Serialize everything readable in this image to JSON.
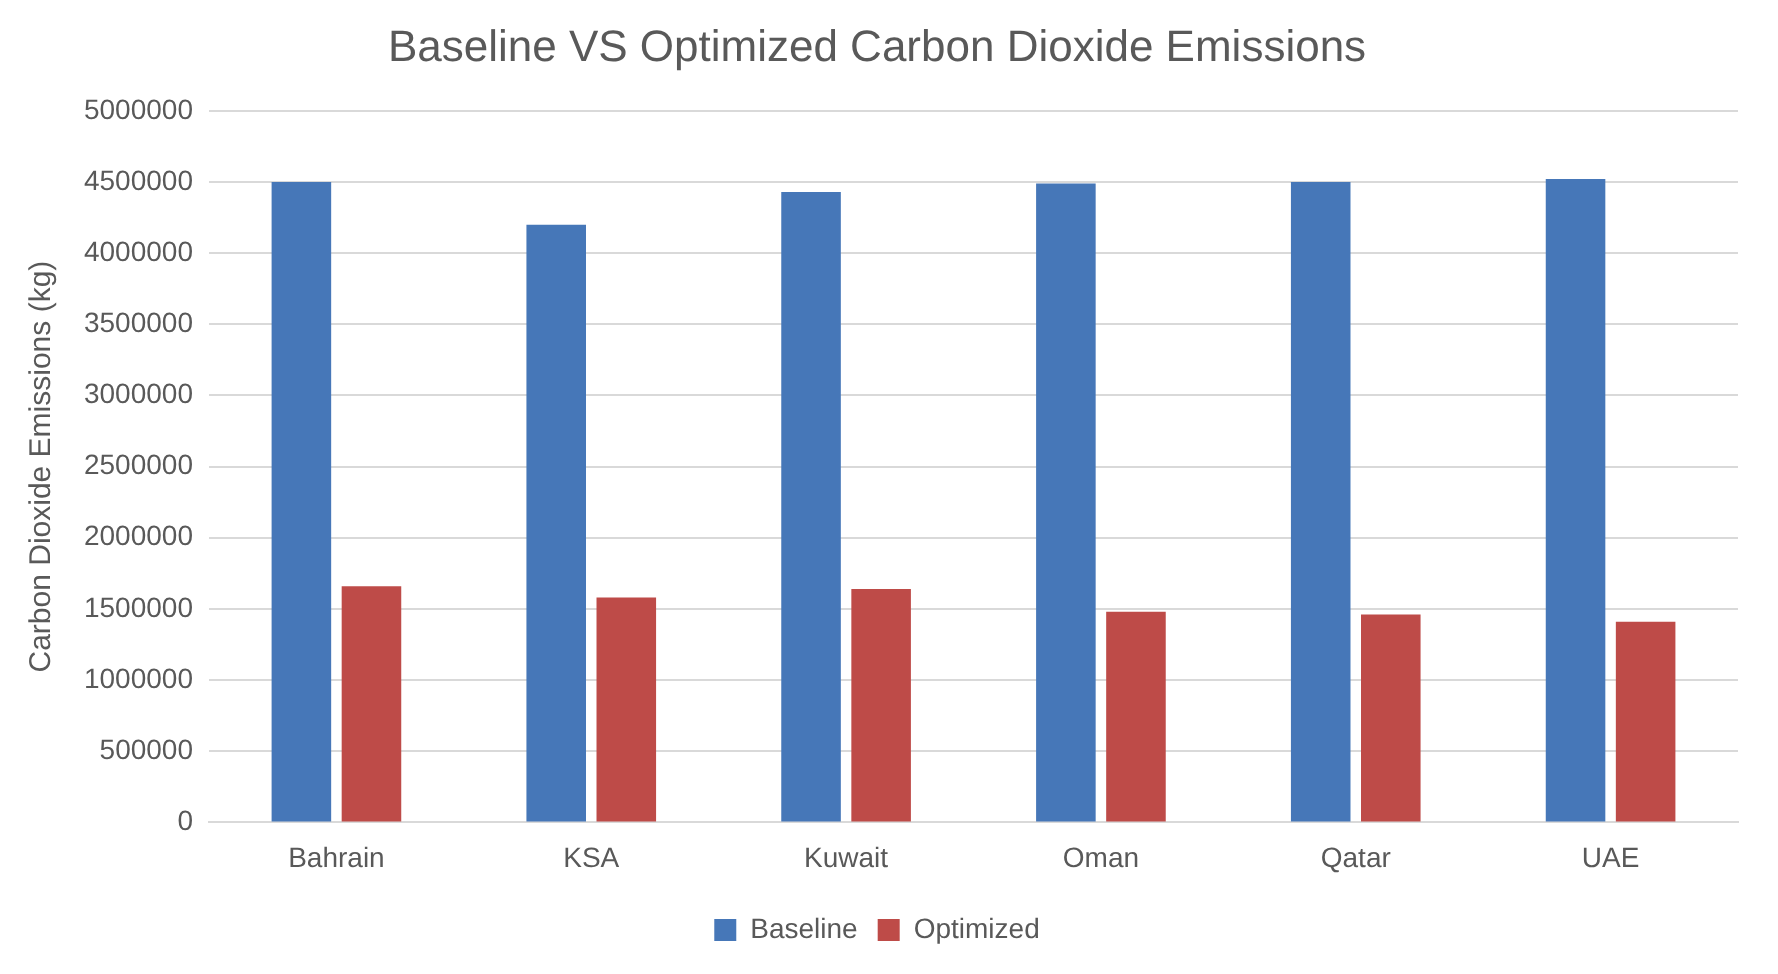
{
  "chart_data": {
    "type": "bar",
    "title": "Baseline VS Optimized Carbon Dioxide Emissions",
    "ylabel": "Carbon Dioxide Emissions (kg)",
    "categories": [
      "Bahrain",
      "KSA",
      "Kuwait",
      "Oman",
      "Qatar",
      "UAE"
    ],
    "series": [
      {
        "name": "Baseline",
        "color": "#4677b8",
        "values": [
          4500000,
          4200000,
          4430000,
          4490000,
          4500000,
          4520000
        ]
      },
      {
        "name": "Optimized",
        "color": "#be4b48",
        "values": [
          1660000,
          1580000,
          1640000,
          1480000,
          1460000,
          1410000
        ]
      }
    ],
    "ylim": [
      0,
      5000000
    ],
    "yticks": [
      0,
      500000,
      1000000,
      1500000,
      2000000,
      2500000,
      3000000,
      3500000,
      4000000,
      4500000,
      5000000
    ],
    "grid": "y",
    "legend": "bottom"
  }
}
